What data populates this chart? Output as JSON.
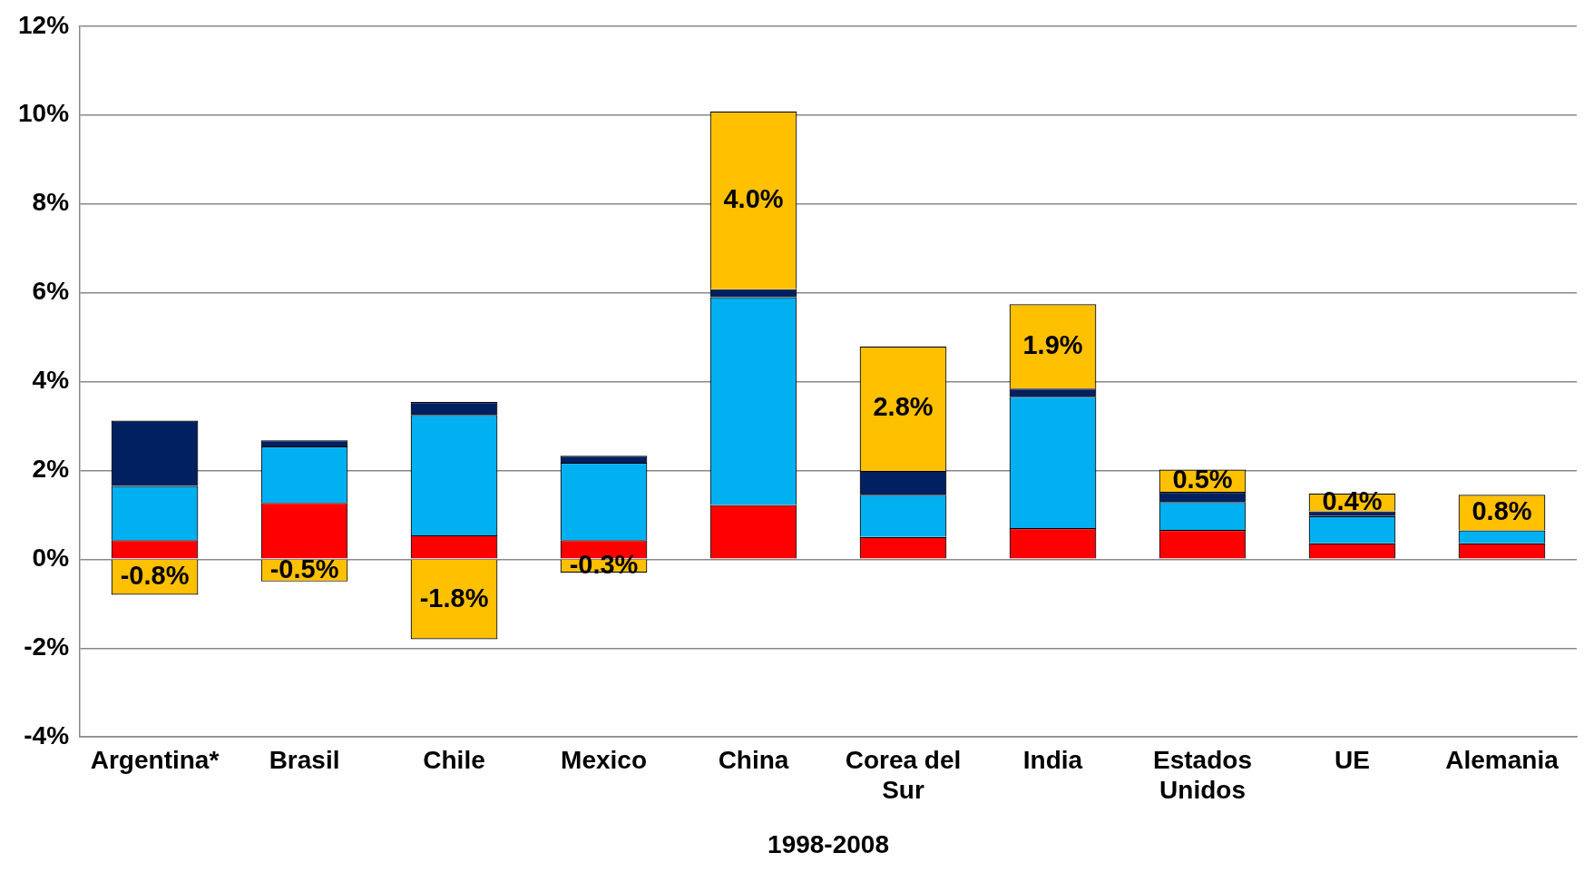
{
  "chart_data": {
    "type": "bar",
    "stacked": true,
    "xlabel": "1998-2008",
    "categories": [
      "Argentina*",
      "Brasil",
      "Chile",
      "Mexico",
      "China",
      "Corea del Sur",
      "India",
      "Estados Unidos",
      "UE",
      "Alemania"
    ],
    "series": [
      {
        "color": "#ff0000",
        "values": [
          0.43,
          1.27,
          0.54,
          0.43,
          1.22,
          0.5,
          0.7,
          0.66,
          0.36,
          0.36
        ]
      },
      {
        "color": "#00b0f0",
        "values": [
          1.22,
          1.27,
          2.71,
          1.74,
          4.68,
          0.95,
          2.96,
          0.63,
          0.61,
          0.29
        ]
      },
      {
        "color": "#002060",
        "values": [
          1.47,
          0.14,
          0.29,
          0.16,
          0.18,
          0.54,
          0.18,
          0.23,
          0.11,
          null
        ]
      },
      {
        "color": "#ffc000",
        "values": [
          -0.8,
          -0.5,
          -1.8,
          -0.3,
          4.0,
          2.8,
          1.9,
          0.5,
          0.4,
          0.8
        ],
        "value_labels": [
          "-0.8%",
          "-0.5%",
          "-1.8%",
          "-0.3%",
          "4.0%",
          "2.8%",
          "1.9%",
          "0.5%",
          "0.4%",
          "0.8%"
        ]
      }
    ],
    "ylim": [
      -4,
      12
    ],
    "yticks": [
      {
        "value": -4,
        "label": "-4%"
      },
      {
        "value": -2,
        "label": "-2%"
      },
      {
        "value": 0,
        "label": "0%"
      },
      {
        "value": 2,
        "label": "2%"
      },
      {
        "value": 4,
        "label": "4%"
      },
      {
        "value": 6,
        "label": "6%"
      },
      {
        "value": 8,
        "label": "8%"
      },
      {
        "value": 10,
        "label": "10%"
      },
      {
        "value": 12,
        "label": "12%"
      }
    ],
    "grid": "y",
    "legend": false
  }
}
